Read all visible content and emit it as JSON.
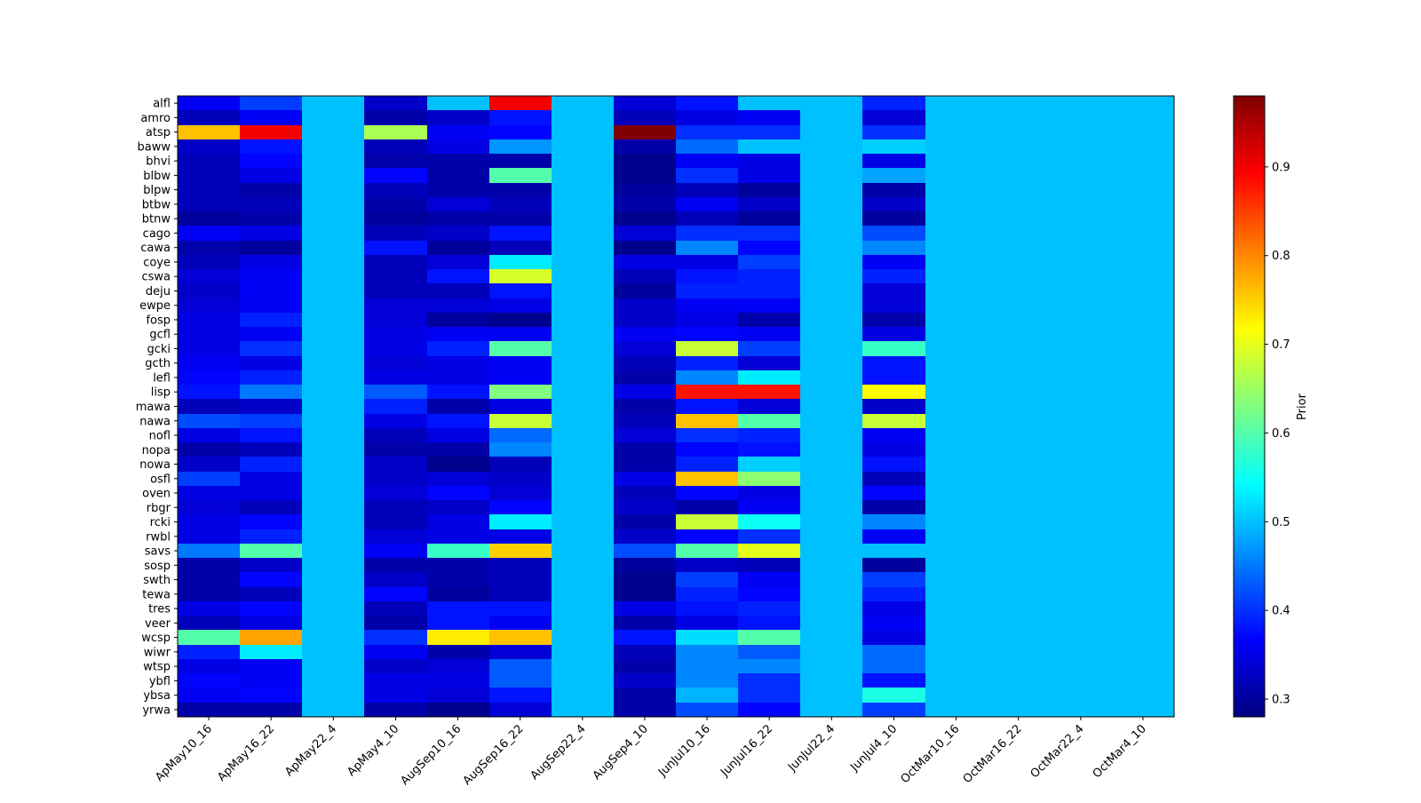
{
  "chart_data": {
    "type": "heatmap",
    "x_categories": [
      "ApMay10_16",
      "ApMay16_22",
      "ApMay22_4",
      "ApMay4_10",
      "AugSep10_16",
      "AugSep16_22",
      "AugSep22_4",
      "AugSep4_10",
      "JunJul10_16",
      "JunJul16_22",
      "JunJul22_4",
      "JunJul4_10",
      "OctMar10_16",
      "OctMar16_22",
      "OctMar22_4",
      "OctMar4_10"
    ],
    "y_categories": [
      "alfl",
      "amro",
      "atsp",
      "baww",
      "bhvi",
      "blbw",
      "blpw",
      "btbw",
      "btnw",
      "cago",
      "cawa",
      "coye",
      "cswa",
      "deju",
      "ewpe",
      "fosp",
      "gcfl",
      "gcki",
      "gcth",
      "lefl",
      "lisp",
      "mawa",
      "nawa",
      "nofl",
      "nopa",
      "nowa",
      "osfl",
      "oven",
      "rbgr",
      "rcki",
      "rwbl",
      "savs",
      "sosp",
      "swth",
      "tewa",
      "tres",
      "veer",
      "wcsp",
      "wiwr",
      "wtsp",
      "ybfl",
      "ybsa",
      "yrwa"
    ],
    "values": [
      [
        0.36,
        0.41,
        0.5,
        0.33,
        0.5,
        0.9,
        0.5,
        0.34,
        0.38,
        0.5,
        0.5,
        0.39,
        0.5,
        0.5,
        0.5,
        0.5
      ],
      [
        0.32,
        0.36,
        0.5,
        0.31,
        0.33,
        0.38,
        0.5,
        0.32,
        0.35,
        0.36,
        0.5,
        0.34,
        0.5,
        0.5,
        0.5,
        0.5
      ],
      [
        0.76,
        0.9,
        0.5,
        0.66,
        0.36,
        0.37,
        0.5,
        0.98,
        0.4,
        0.4,
        0.5,
        0.4,
        0.5,
        0.5,
        0.5,
        0.5
      ],
      [
        0.33,
        0.38,
        0.5,
        0.32,
        0.35,
        0.47,
        0.5,
        0.31,
        0.44,
        0.5,
        0.5,
        0.51,
        0.5,
        0.5,
        0.5,
        0.5
      ],
      [
        0.32,
        0.37,
        0.5,
        0.31,
        0.31,
        0.31,
        0.5,
        0.29,
        0.36,
        0.35,
        0.5,
        0.35,
        0.5,
        0.5,
        0.5,
        0.5
      ],
      [
        0.32,
        0.35,
        0.5,
        0.37,
        0.31,
        0.6,
        0.5,
        0.29,
        0.4,
        0.35,
        0.5,
        0.48,
        0.5,
        0.5,
        0.5,
        0.5
      ],
      [
        0.32,
        0.31,
        0.5,
        0.32,
        0.31,
        0.31,
        0.5,
        0.3,
        0.32,
        0.3,
        0.5,
        0.31,
        0.5,
        0.5,
        0.5,
        0.5
      ],
      [
        0.32,
        0.32,
        0.5,
        0.31,
        0.34,
        0.32,
        0.5,
        0.31,
        0.36,
        0.33,
        0.5,
        0.33,
        0.5,
        0.5,
        0.5,
        0.5
      ],
      [
        0.3,
        0.31,
        0.5,
        0.3,
        0.31,
        0.31,
        0.5,
        0.29,
        0.32,
        0.3,
        0.5,
        0.3,
        0.5,
        0.5,
        0.5,
        0.5
      ],
      [
        0.36,
        0.35,
        0.5,
        0.32,
        0.33,
        0.38,
        0.5,
        0.34,
        0.4,
        0.4,
        0.5,
        0.42,
        0.5,
        0.5,
        0.5,
        0.5
      ],
      [
        0.31,
        0.3,
        0.5,
        0.38,
        0.3,
        0.32,
        0.5,
        0.29,
        0.46,
        0.37,
        0.5,
        0.46,
        0.5,
        0.5,
        0.5,
        0.5
      ],
      [
        0.32,
        0.35,
        0.5,
        0.32,
        0.34,
        0.53,
        0.5,
        0.35,
        0.35,
        0.41,
        0.5,
        0.36,
        0.5,
        0.5,
        0.5,
        0.5
      ],
      [
        0.34,
        0.36,
        0.5,
        0.32,
        0.38,
        0.69,
        0.5,
        0.32,
        0.38,
        0.39,
        0.5,
        0.39,
        0.5,
        0.5,
        0.5,
        0.5
      ],
      [
        0.33,
        0.36,
        0.5,
        0.32,
        0.32,
        0.38,
        0.5,
        0.3,
        0.39,
        0.39,
        0.5,
        0.34,
        0.5,
        0.5,
        0.5,
        0.5
      ],
      [
        0.34,
        0.36,
        0.5,
        0.34,
        0.34,
        0.35,
        0.5,
        0.33,
        0.36,
        0.36,
        0.5,
        0.34,
        0.5,
        0.5,
        0.5,
        0.5
      ],
      [
        0.35,
        0.39,
        0.5,
        0.34,
        0.3,
        0.29,
        0.5,
        0.33,
        0.35,
        0.31,
        0.5,
        0.31,
        0.5,
        0.5,
        0.5,
        0.5
      ],
      [
        0.35,
        0.36,
        0.5,
        0.35,
        0.36,
        0.36,
        0.5,
        0.36,
        0.37,
        0.36,
        0.5,
        0.35,
        0.5,
        0.5,
        0.5,
        0.5
      ],
      [
        0.35,
        0.4,
        0.5,
        0.35,
        0.39,
        0.6,
        0.5,
        0.34,
        0.68,
        0.41,
        0.5,
        0.58,
        0.5,
        0.5,
        0.5,
        0.5
      ],
      [
        0.36,
        0.35,
        0.5,
        0.34,
        0.35,
        0.36,
        0.5,
        0.32,
        0.39,
        0.34,
        0.5,
        0.38,
        0.5,
        0.5,
        0.5,
        0.5
      ],
      [
        0.37,
        0.39,
        0.5,
        0.35,
        0.35,
        0.36,
        0.5,
        0.31,
        0.46,
        0.53,
        0.5,
        0.38,
        0.5,
        0.5,
        0.5,
        0.5
      ],
      [
        0.38,
        0.45,
        0.5,
        0.43,
        0.38,
        0.63,
        0.5,
        0.35,
        0.88,
        0.88,
        0.5,
        0.72,
        0.5,
        0.5,
        0.5,
        0.5
      ],
      [
        0.32,
        0.33,
        0.5,
        0.39,
        0.31,
        0.35,
        0.5,
        0.31,
        0.38,
        0.34,
        0.5,
        0.33,
        0.5,
        0.5,
        0.5,
        0.5
      ],
      [
        0.42,
        0.41,
        0.5,
        0.35,
        0.38,
        0.68,
        0.5,
        0.32,
        0.76,
        0.6,
        0.5,
        0.68,
        0.5,
        0.5,
        0.5,
        0.5
      ],
      [
        0.35,
        0.38,
        0.5,
        0.32,
        0.35,
        0.44,
        0.5,
        0.34,
        0.4,
        0.39,
        0.5,
        0.36,
        0.5,
        0.5,
        0.5,
        0.5
      ],
      [
        0.31,
        0.32,
        0.5,
        0.31,
        0.31,
        0.46,
        0.5,
        0.31,
        0.37,
        0.38,
        0.5,
        0.35,
        0.5,
        0.5,
        0.5,
        0.5
      ],
      [
        0.33,
        0.39,
        0.5,
        0.33,
        0.29,
        0.32,
        0.5,
        0.31,
        0.39,
        0.51,
        0.5,
        0.38,
        0.5,
        0.5,
        0.5,
        0.5
      ],
      [
        0.41,
        0.35,
        0.5,
        0.33,
        0.34,
        0.33,
        0.5,
        0.35,
        0.76,
        0.64,
        0.5,
        0.32,
        0.5,
        0.5,
        0.5,
        0.5
      ],
      [
        0.35,
        0.35,
        0.5,
        0.34,
        0.37,
        0.34,
        0.5,
        0.32,
        0.37,
        0.35,
        0.5,
        0.37,
        0.5,
        0.5,
        0.5,
        0.5
      ],
      [
        0.34,
        0.32,
        0.5,
        0.32,
        0.33,
        0.37,
        0.5,
        0.33,
        0.31,
        0.36,
        0.5,
        0.31,
        0.5,
        0.5,
        0.5,
        0.5
      ],
      [
        0.35,
        0.37,
        0.5,
        0.32,
        0.35,
        0.53,
        0.5,
        0.31,
        0.68,
        0.55,
        0.5,
        0.46,
        0.5,
        0.5,
        0.5,
        0.5
      ],
      [
        0.35,
        0.39,
        0.5,
        0.34,
        0.35,
        0.35,
        0.5,
        0.33,
        0.37,
        0.4,
        0.5,
        0.36,
        0.5,
        0.5,
        0.5,
        0.5
      ],
      [
        0.45,
        0.6,
        0.5,
        0.36,
        0.58,
        0.75,
        0.5,
        0.42,
        0.6,
        0.7,
        0.5,
        0.5,
        0.5,
        0.5,
        0.5,
        0.5
      ],
      [
        0.31,
        0.33,
        0.5,
        0.31,
        0.31,
        0.32,
        0.5,
        0.3,
        0.33,
        0.32,
        0.5,
        0.3,
        0.5,
        0.5,
        0.5,
        0.5
      ],
      [
        0.31,
        0.37,
        0.5,
        0.33,
        0.31,
        0.32,
        0.5,
        0.29,
        0.41,
        0.36,
        0.5,
        0.41,
        0.5,
        0.5,
        0.5,
        0.5
      ],
      [
        0.31,
        0.32,
        0.5,
        0.37,
        0.3,
        0.32,
        0.5,
        0.29,
        0.39,
        0.37,
        0.5,
        0.39,
        0.5,
        0.5,
        0.5,
        0.5
      ],
      [
        0.35,
        0.37,
        0.5,
        0.32,
        0.38,
        0.38,
        0.5,
        0.35,
        0.38,
        0.39,
        0.5,
        0.35,
        0.5,
        0.5,
        0.5,
        0.5
      ],
      [
        0.32,
        0.35,
        0.5,
        0.31,
        0.38,
        0.36,
        0.5,
        0.31,
        0.35,
        0.38,
        0.5,
        0.36,
        0.5,
        0.5,
        0.5,
        0.5
      ],
      [
        0.6,
        0.78,
        0.5,
        0.4,
        0.73,
        0.76,
        0.5,
        0.38,
        0.52,
        0.6,
        0.5,
        0.35,
        0.5,
        0.5,
        0.5,
        0.5
      ],
      [
        0.39,
        0.53,
        0.5,
        0.36,
        0.31,
        0.34,
        0.5,
        0.32,
        0.46,
        0.43,
        0.5,
        0.44,
        0.5,
        0.5,
        0.5,
        0.5
      ],
      [
        0.35,
        0.36,
        0.5,
        0.33,
        0.34,
        0.43,
        0.5,
        0.31,
        0.46,
        0.46,
        0.5,
        0.44,
        0.5,
        0.5,
        0.5,
        0.5
      ],
      [
        0.37,
        0.36,
        0.5,
        0.35,
        0.35,
        0.43,
        0.5,
        0.33,
        0.46,
        0.4,
        0.5,
        0.38,
        0.5,
        0.5,
        0.5,
        0.5
      ],
      [
        0.36,
        0.37,
        0.5,
        0.35,
        0.34,
        0.38,
        0.5,
        0.31,
        0.49,
        0.4,
        0.5,
        0.56,
        0.5,
        0.5,
        0.5,
        0.5
      ],
      [
        0.31,
        0.31,
        0.5,
        0.31,
        0.29,
        0.34,
        0.5,
        0.31,
        0.42,
        0.37,
        0.5,
        0.41,
        0.5,
        0.5,
        0.5,
        0.5
      ]
    ],
    "colormap": "jet",
    "vmin": 0.28,
    "vmax": 0.98,
    "colorbar": {
      "label": "Prior",
      "ticks": [
        0.3,
        0.4,
        0.5,
        0.6,
        0.7,
        0.8,
        0.9
      ]
    },
    "legend_placement": "right",
    "grid": false
  }
}
